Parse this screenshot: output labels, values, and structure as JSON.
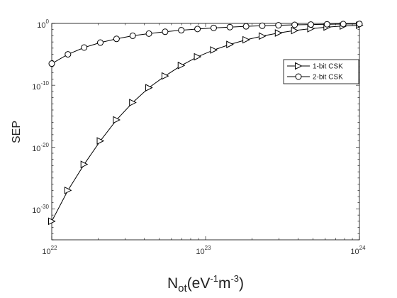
{
  "chart_data": {
    "type": "line",
    "x_scale": "log",
    "y_scale": "log",
    "xlim": [
      1e+22,
      1e+24
    ],
    "ylim": [
      1e-35,
      1
    ],
    "grid": false,
    "legend_position": "upper-right, inside plot area",
    "ylabel": "SEP",
    "xlabel": {
      "base": "N",
      "sub": "ot",
      "open": "(eV",
      "exp1": "-1",
      "mid": "m",
      "exp2": "-3",
      "close": ")"
    },
    "x_ticks": [
      {
        "base": "10",
        "exp": "22"
      },
      {
        "base": "10",
        "exp": "23"
      },
      {
        "base": "10",
        "exp": "24"
      }
    ],
    "y_ticks": [
      {
        "base": "10",
        "exp": "0"
      },
      {
        "base": "10",
        "exp": "-10"
      },
      {
        "base": "10",
        "exp": "-20"
      },
      {
        "base": "10",
        "exp": "-30"
      }
    ],
    "x": [
      1e+22,
      1.274e+22,
      1.624e+22,
      2.069e+22,
      2.637e+22,
      3.36e+22,
      4.281e+22,
      5.456e+22,
      6.952e+22,
      8.859e+22,
      1.129e+23,
      1.438e+23,
      1.833e+23,
      2.336e+23,
      2.976e+23,
      3.793e+23,
      4.833e+23,
      6.158e+23,
      7.848e+23,
      1e+24
    ],
    "series": [
      {
        "name": "1-bit CSK",
        "marker": "triangle-right",
        "color": "#000000",
        "y_log10": [
          -32.0,
          -27.0,
          -22.8,
          -19.0,
          -15.6,
          -12.8,
          -10.4,
          -8.5,
          -6.8,
          -5.4,
          -4.3,
          -3.4,
          -2.65,
          -2.05,
          -1.55,
          -1.15,
          -0.85,
          -0.6,
          -0.42,
          -0.3
        ]
      },
      {
        "name": "2-bit CSK",
        "marker": "circle",
        "color": "#000000",
        "y_log10": [
          -6.5,
          -5.0,
          -3.9,
          -3.1,
          -2.5,
          -2.0,
          -1.65,
          -1.35,
          -1.1,
          -0.9,
          -0.73,
          -0.6,
          -0.48,
          -0.38,
          -0.3,
          -0.23,
          -0.18,
          -0.14,
          -0.1,
          -0.08
        ]
      }
    ]
  }
}
